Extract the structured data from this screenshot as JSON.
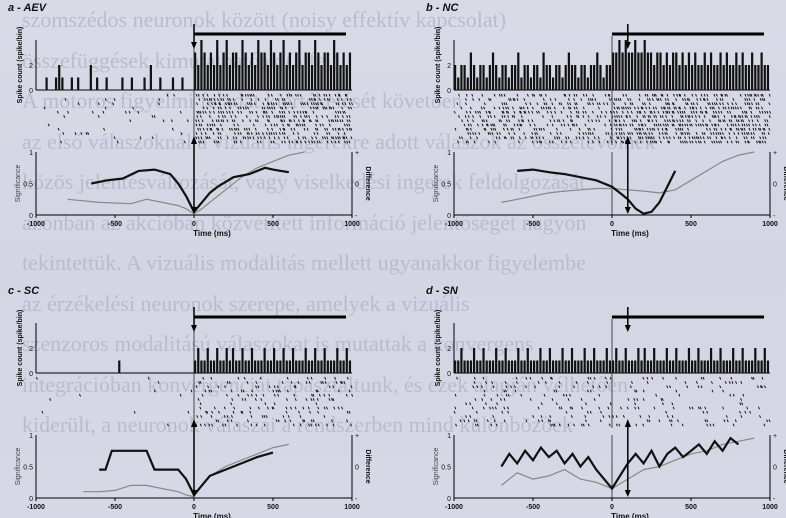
{
  "background_text_lines": [
    "szomszédos neuronok között (noisy effektív kapcsolat)",
    "összefüggések kimutathatóak (a fej).",
    "A motoros figyelmi feladat kiértékelését követően",
    "az első válaszoknál a vizuális ingerekre adott válaszok az összetevőinek",
    "közös jelentésváltozását, vagy viselkedési ingerek feldolgozását",
    "azonban az akcióban közvetített információ jelentőségét nagyon",
    "tekintettük. A vizuális modalitás mellett ugyanakkor figyelembe",
    "az érzékelési neuronok szerepe, amelyek a vizuális",
    "szenzoros modalitású válaszokat is mutattak a konvergens",
    "integrációban konvergenciát tapasztaltunk, és ezek alapján vélhetően",
    "kiderült, a neuronok válaszai a rendszerben mind különbözőek"
  ],
  "panels": [
    {
      "id": "aev",
      "label": "a - AEV",
      "ylabel_hist": "Spike count (spike/bin)",
      "ylabel_sig": "Significance",
      "ylabel_diff": "Difference",
      "xlabel": "Time (ms)",
      "x_ticks": [
        "-1000",
        "-500",
        "0",
        "500",
        "1000"
      ],
      "sig_ticks": [
        "1",
        "0.5",
        "0"
      ],
      "diff_ticks": [
        "+",
        "0",
        "-"
      ],
      "hist_ticks": [
        "2",
        "0"
      ],
      "xlim": [
        -1000,
        1000
      ],
      "hist_ymax": 4,
      "hist_pre": [
        0,
        0,
        0,
        1,
        0,
        0,
        1,
        2,
        1,
        0,
        0,
        1,
        0,
        1,
        0,
        0,
        0,
        2,
        0,
        1,
        0,
        0,
        1,
        0,
        0,
        0,
        0,
        1,
        0,
        0,
        1,
        0,
        0,
        0,
        1,
        0,
        2,
        0,
        0,
        1,
        0,
        0,
        0,
        1,
        0,
        0,
        1,
        0,
        0,
        0
      ],
      "hist_post": [
        3,
        2,
        4,
        3,
        2,
        3,
        2,
        4,
        2,
        3,
        4,
        2,
        3,
        3,
        2,
        4,
        3,
        2,
        3,
        2,
        4,
        3,
        3,
        2,
        4,
        3,
        2,
        3,
        4,
        2,
        3,
        2,
        3,
        4,
        2,
        3,
        3,
        2,
        4,
        3,
        2,
        3,
        3,
        2,
        4,
        3,
        2,
        3,
        2,
        3
      ],
      "raster_pre_density": 0.05,
      "raster_post_density": 0.5,
      "sig_x": [
        -650,
        -550,
        -450,
        -350,
        -250,
        -150,
        -100,
        -50,
        0,
        50,
        100,
        150,
        250,
        350,
        450,
        500,
        550,
        600
      ],
      "sig_y": [
        0.5,
        0.55,
        0.58,
        0.7,
        0.72,
        0.65,
        0.5,
        0.3,
        0.05,
        0.2,
        0.35,
        0.45,
        0.6,
        0.65,
        0.75,
        0.72,
        0.7,
        0.68
      ],
      "diff_x": [
        -800,
        -600,
        -400,
        -300,
        -200,
        -100,
        -50,
        0,
        50,
        100,
        200,
        300,
        400,
        500,
        600,
        700
      ],
      "diff_y": [
        0.25,
        0.2,
        0.18,
        0.25,
        0.2,
        0.15,
        0.1,
        0.02,
        0.1,
        0.2,
        0.4,
        0.6,
        0.75,
        0.85,
        0.95,
        1.0
      ],
      "arrow_time": 0
    },
    {
      "id": "nc",
      "label": "b - NC",
      "ylabel_hist": "Spike count (spike/bin)",
      "ylabel_sig": "Significance",
      "ylabel_diff": "Difference",
      "xlabel": "Time (ms)",
      "x_ticks": [
        "-1000",
        "-500",
        "0",
        "500",
        "1000"
      ],
      "sig_ticks": [
        "1",
        "0.5",
        "0"
      ],
      "diff_ticks": [
        "+",
        "0",
        "-"
      ],
      "hist_ticks": [
        "2",
        "0"
      ],
      "xlim": [
        -1000,
        1000
      ],
      "hist_ymax": 4,
      "hist_pre": [
        2,
        1,
        2,
        2,
        1,
        3,
        2,
        1,
        2,
        2,
        1,
        2,
        3,
        2,
        1,
        2,
        2,
        1,
        2,
        2,
        3,
        1,
        2,
        2,
        1,
        2,
        2,
        1,
        3,
        2,
        2,
        1,
        2,
        2,
        1,
        2,
        3,
        2,
        2,
        1,
        2,
        2,
        1,
        2,
        2,
        3,
        2,
        1,
        2,
        2
      ],
      "hist_post": [
        3,
        3,
        4,
        3,
        4,
        3,
        3,
        4,
        3,
        3,
        4,
        3,
        3,
        2,
        3,
        3,
        2,
        3,
        2,
        3,
        3,
        2,
        3,
        2,
        3,
        2,
        3,
        2,
        2,
        3,
        2,
        3,
        2,
        2,
        3,
        2,
        3,
        2,
        2,
        3,
        2,
        3,
        2,
        2,
        3,
        2,
        2,
        3,
        2,
        2
      ],
      "raster_pre_density": 0.35,
      "raster_post_density": 0.6,
      "sig_x": [
        -600,
        -500,
        -400,
        -300,
        -200,
        -100,
        0,
        50,
        100,
        150,
        200,
        250,
        300,
        350,
        400
      ],
      "sig_y": [
        0.7,
        0.72,
        0.68,
        0.65,
        0.6,
        0.55,
        0.45,
        0.35,
        0.25,
        0.1,
        0.02,
        0.05,
        0.2,
        0.45,
        0.7
      ],
      "diff_x": [
        -700,
        -600,
        -500,
        -400,
        -300,
        -200,
        -100,
        0,
        100,
        200,
        300,
        400,
        500,
        600,
        700,
        800,
        900
      ],
      "diff_y": [
        0.2,
        0.25,
        0.3,
        0.35,
        0.38,
        0.4,
        0.42,
        0.42,
        0.4,
        0.38,
        0.35,
        0.4,
        0.55,
        0.7,
        0.85,
        0.95,
        1.0
      ],
      "arrow_time": 100
    },
    {
      "id": "sc",
      "label": "c - SC",
      "ylabel_hist": "Spike count (spike/bin)",
      "ylabel_sig": "Significance",
      "ylabel_diff": "Difference",
      "xlabel": "Time (ms)",
      "x_ticks": [
        "-1000",
        "-500",
        "0",
        "500",
        "1000"
      ],
      "sig_ticks": [
        "1",
        "0.5",
        "0"
      ],
      "diff_ticks": [
        "+",
        "0",
        "-"
      ],
      "hist_ticks": [
        "2",
        "0"
      ],
      "xlim": [
        -1000,
        1000
      ],
      "hist_ymax": 4,
      "hist_pre": [
        0,
        0,
        0,
        0,
        0,
        0,
        0,
        0,
        0,
        0,
        0,
        0,
        0,
        0,
        0,
        0,
        0,
        0,
        0,
        0,
        0,
        0,
        0,
        0,
        0,
        0,
        1,
        0,
        0,
        0,
        0,
        0,
        0,
        0,
        0,
        0,
        0,
        0,
        0,
        0,
        0,
        0,
        0,
        0,
        0,
        0,
        0,
        0,
        0,
        0
      ],
      "hist_post": [
        1,
        2,
        1,
        1,
        2,
        1,
        1,
        2,
        1,
        1,
        2,
        1,
        2,
        1,
        1,
        2,
        1,
        1,
        2,
        1,
        1,
        1,
        2,
        1,
        1,
        2,
        1,
        1,
        2,
        1,
        1,
        2,
        1,
        1,
        1,
        2,
        1,
        1,
        2,
        1,
        1,
        2,
        1,
        1,
        1,
        2,
        1,
        1,
        2,
        1
      ],
      "raster_pre_density": 0.01,
      "raster_post_density": 0.2,
      "sig_x": [
        -600,
        -560,
        -520,
        -500,
        -400,
        -300,
        -250,
        -200,
        -100,
        -50,
        0,
        50,
        100,
        200,
        300,
        400,
        500
      ],
      "sig_y": [
        0.45,
        0.45,
        0.75,
        0.75,
        0.75,
        0.75,
        0.45,
        0.45,
        0.45,
        0.3,
        0.05,
        0.2,
        0.35,
        0.45,
        0.55,
        0.65,
        0.72
      ],
      "diff_x": [
        -700,
        -600,
        -500,
        -400,
        -300,
        -200,
        -100,
        -50,
        0,
        50,
        100,
        200,
        300,
        400,
        500,
        600
      ],
      "diff_y": [
        0.1,
        0.1,
        0.12,
        0.2,
        0.2,
        0.15,
        0.1,
        0.05,
        0.02,
        0.2,
        0.35,
        0.5,
        0.6,
        0.7,
        0.8,
        0.85
      ],
      "arrow_time": 0
    },
    {
      "id": "sn",
      "label": "d - SN",
      "ylabel_hist": "Spike count (spike/bin)",
      "ylabel_sig": "Significance",
      "ylabel_diff": "Difference",
      "xlabel": "Time (ms)",
      "x_ticks": [
        "-1000",
        "-500",
        "0",
        "500",
        "1000"
      ],
      "sig_ticks": [
        "1",
        "0.5",
        "0"
      ],
      "diff_ticks": [
        "+",
        "0",
        "-"
      ],
      "hist_ticks": [
        "2",
        "0"
      ],
      "xlim": [
        -1000,
        1000
      ],
      "hist_ymax": 4,
      "hist_pre": [
        1,
        1,
        2,
        1,
        1,
        1,
        2,
        1,
        1,
        2,
        1,
        1,
        1,
        2,
        1,
        1,
        2,
        1,
        1,
        1,
        2,
        1,
        1,
        2,
        1,
        1,
        1,
        2,
        1,
        1,
        2,
        1,
        1,
        1,
        2,
        1,
        1,
        2,
        1,
        1,
        1,
        2,
        1,
        1,
        2,
        1,
        1,
        1,
        2,
        1
      ],
      "hist_post": [
        1,
        2,
        1,
        1,
        2,
        1,
        1,
        1,
        2,
        1,
        2,
        1,
        1,
        2,
        1,
        1,
        1,
        2,
        1,
        1,
        2,
        1,
        1,
        1,
        2,
        1,
        1,
        2,
        1,
        1,
        1,
        2,
        1,
        1,
        2,
        1,
        1,
        1,
        2,
        1,
        1,
        2,
        1,
        1,
        1,
        2,
        1,
        1,
        2,
        1
      ],
      "raster_pre_density": 0.15,
      "raster_post_density": 0.15,
      "sig_x": [
        -700,
        -650,
        -600,
        -550,
        -500,
        -450,
        -400,
        -350,
        -300,
        -250,
        -200,
        -150,
        -100,
        -50,
        0,
        50,
        100,
        150,
        200,
        250,
        300,
        350,
        400,
        450,
        500,
        550,
        600,
        650,
        700,
        750,
        800
      ],
      "sig_y": [
        0.5,
        0.7,
        0.55,
        0.75,
        0.6,
        0.8,
        0.65,
        0.75,
        0.55,
        0.7,
        0.5,
        0.65,
        0.45,
        0.3,
        0.15,
        0.35,
        0.55,
        0.7,
        0.55,
        0.75,
        0.5,
        0.7,
        0.8,
        0.65,
        0.75,
        0.85,
        0.7,
        0.9,
        0.75,
        0.95,
        0.85
      ],
      "diff_x": [
        -700,
        -600,
        -500,
        -400,
        -300,
        -200,
        -100,
        0,
        100,
        200,
        300,
        400,
        500,
        600,
        700,
        800,
        900
      ],
      "diff_y": [
        0.2,
        0.4,
        0.3,
        0.35,
        0.45,
        0.3,
        0.25,
        0.15,
        0.3,
        0.45,
        0.5,
        0.6,
        0.7,
        0.75,
        0.85,
        0.9,
        0.95
      ],
      "arrow_time": 100
    }
  ]
}
